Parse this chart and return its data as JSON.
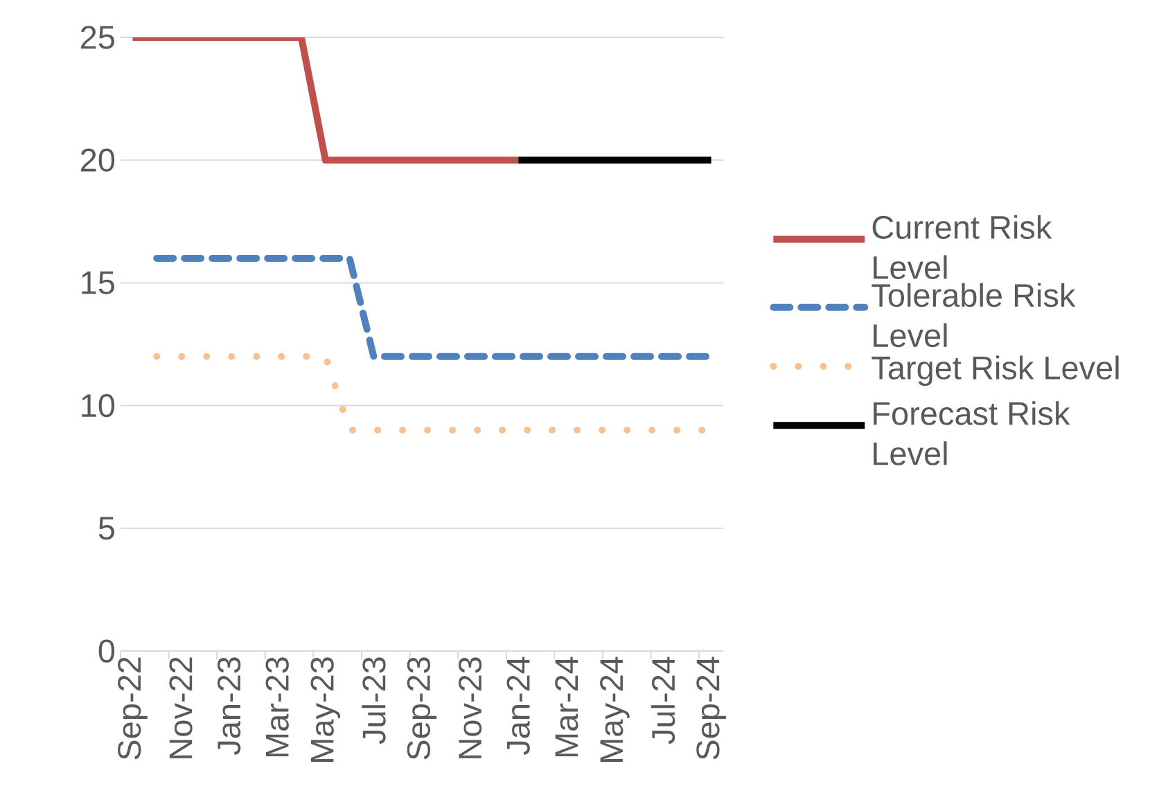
{
  "chart_data": {
    "type": "line",
    "categories": [
      "Sep-22",
      null,
      "Nov-22",
      null,
      "Jan-23",
      null,
      "Mar-23",
      null,
      "May-23",
      null,
      "Jul-23",
      null,
      "Sep-23",
      null,
      "Nov-23",
      null,
      "Jan-24",
      null,
      "Mar-24",
      null,
      "May-24",
      null,
      "Jul-24",
      null,
      "Sep-24"
    ],
    "series": [
      {
        "name": "Current Risk Level",
        "color": "#c0504d",
        "line_style": "solid",
        "values": [
          25,
          25,
          25,
          25,
          25,
          25,
          25,
          25,
          20,
          20,
          20,
          20,
          20,
          20,
          20,
          20,
          20,
          null,
          null,
          null,
          null,
          null,
          null,
          null,
          null
        ]
      },
      {
        "name": "Tolerable Risk Level",
        "color": "#4f81bd",
        "line_style": "dashed",
        "values": [
          null,
          16,
          16,
          16,
          16,
          16,
          16,
          16,
          16,
          16,
          12,
          12,
          12,
          12,
          12,
          12,
          12,
          12,
          12,
          12,
          12,
          12,
          12,
          12,
          12
        ]
      },
      {
        "name": "Target Risk Level",
        "color": "#fac090",
        "line_style": "dotted",
        "values": [
          null,
          12,
          12,
          12,
          12,
          12,
          12,
          12,
          12,
          9,
          9,
          9,
          9,
          9,
          9,
          9,
          9,
          9,
          9,
          9,
          9,
          9,
          9,
          9,
          9
        ]
      },
      {
        "name": "Forecast Risk Level",
        "color": "#000000",
        "line_style": "solid",
        "values": [
          null,
          null,
          null,
          null,
          null,
          null,
          null,
          null,
          null,
          null,
          null,
          null,
          null,
          null,
          null,
          null,
          20,
          20,
          20,
          20,
          20,
          20,
          20,
          20,
          20
        ]
      }
    ],
    "ylim": [
      0,
      25
    ],
    "yticks": [
      0,
      5,
      10,
      15,
      20,
      25
    ],
    "grid": "y",
    "legend": "right",
    "marker": "none"
  }
}
